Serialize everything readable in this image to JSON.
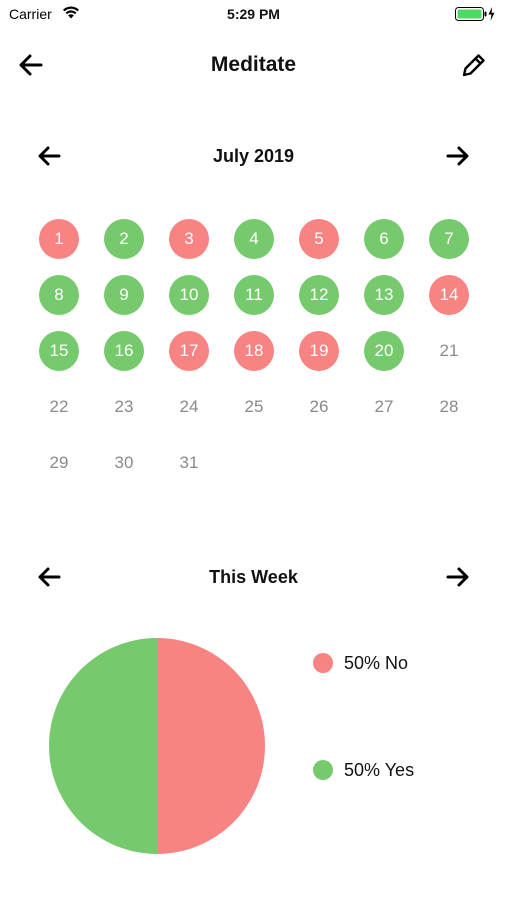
{
  "status_bar": {
    "carrier": "Carrier",
    "time": "5:29 PM"
  },
  "nav": {
    "title": "Meditate",
    "back_icon": "arrow-left-icon",
    "edit_icon": "pencil-icon"
  },
  "calendar": {
    "month_label": "July 2019",
    "days": [
      {
        "label": "1",
        "status": "no"
      },
      {
        "label": "2",
        "status": "yes"
      },
      {
        "label": "3",
        "status": "no"
      },
      {
        "label": "4",
        "status": "yes"
      },
      {
        "label": "5",
        "status": "no"
      },
      {
        "label": "6",
        "status": "yes"
      },
      {
        "label": "7",
        "status": "yes"
      },
      {
        "label": "8",
        "status": "yes"
      },
      {
        "label": "9",
        "status": "yes"
      },
      {
        "label": "10",
        "status": "yes"
      },
      {
        "label": "11",
        "status": "yes"
      },
      {
        "label": "12",
        "status": "yes"
      },
      {
        "label": "13",
        "status": "yes"
      },
      {
        "label": "14",
        "status": "no"
      },
      {
        "label": "15",
        "status": "yes"
      },
      {
        "label": "16",
        "status": "yes"
      },
      {
        "label": "17",
        "status": "no"
      },
      {
        "label": "18",
        "status": "no"
      },
      {
        "label": "19",
        "status": "no"
      },
      {
        "label": "20",
        "status": "yes"
      },
      {
        "label": "21",
        "status": "none"
      },
      {
        "label": "22",
        "status": "none"
      },
      {
        "label": "23",
        "status": "none"
      },
      {
        "label": "24",
        "status": "none"
      },
      {
        "label": "25",
        "status": "none"
      },
      {
        "label": "26",
        "status": "none"
      },
      {
        "label": "27",
        "status": "none"
      },
      {
        "label": "28",
        "status": "none"
      },
      {
        "label": "29",
        "status": "none"
      },
      {
        "label": "30",
        "status": "none"
      },
      {
        "label": "31",
        "status": "none"
      }
    ]
  },
  "week": {
    "label": "This Week",
    "legend": [
      {
        "label": "50% No",
        "color": "#f78383"
      },
      {
        "label": "50% Yes",
        "color": "#76c96d"
      }
    ]
  },
  "chart_data": {
    "type": "pie",
    "slices": [
      {
        "name": "No",
        "value": 50,
        "color": "#f78383"
      },
      {
        "name": "Yes",
        "value": 50,
        "color": "#76c96d"
      }
    ]
  },
  "colors": {
    "no": "#f78383",
    "yes": "#76c96d",
    "future_day_text": "#8a8a8a"
  }
}
